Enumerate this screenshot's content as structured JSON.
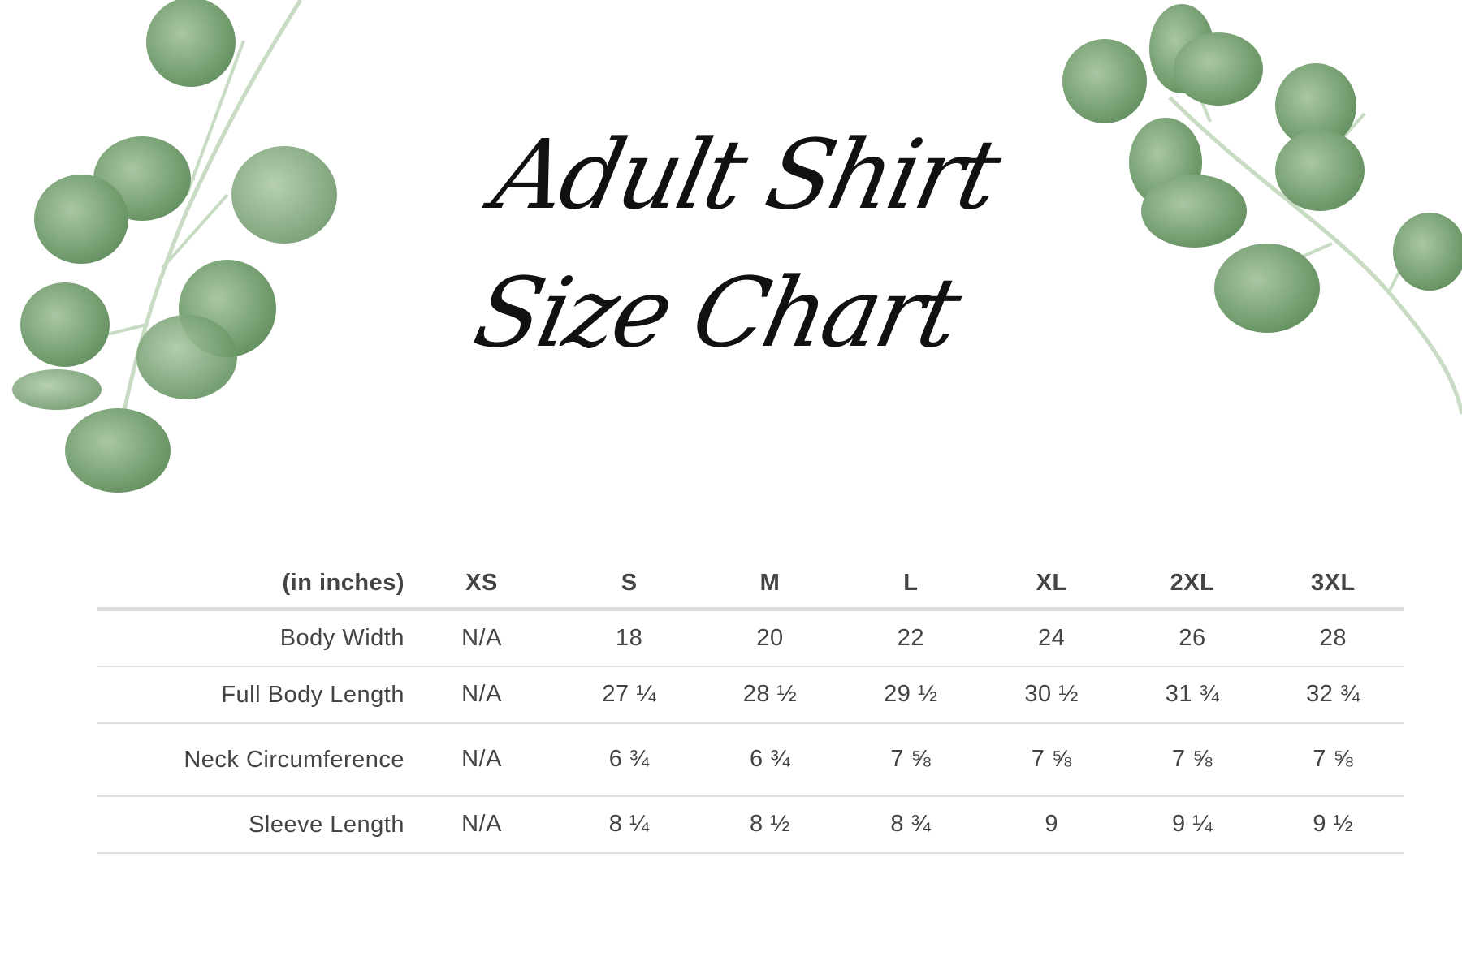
{
  "title": {
    "line1": "Adult Shirt",
    "line2": "Size Chart"
  },
  "colors": {
    "leaf": "#6f9a6a",
    "leaf_light": "#a9c7a3",
    "text": "#444444",
    "rule": "#dcdcdc"
  },
  "table": {
    "headers": [
      "(in inches)",
      "XS",
      "S",
      "M",
      "L",
      "XL",
      "2XL",
      "3XL"
    ],
    "rows": [
      {
        "label": "Body Width",
        "values": [
          "N/A",
          "18",
          "20",
          "22",
          "24",
          "26",
          "28"
        ]
      },
      {
        "label": "Full Body Length",
        "values": [
          "N/A",
          "27 ¼",
          "28 ½",
          "29 ½",
          "30 ½",
          "31 ¾",
          "32 ¾"
        ]
      },
      {
        "label": "Neck Circumference",
        "values": [
          "N/A",
          "6 ¾",
          "6 ¾",
          "7 ⅝",
          "7 ⅝",
          "7 ⅝",
          "7 ⅝"
        ]
      },
      {
        "label": "Sleeve Length",
        "values": [
          "N/A",
          "8 ¼",
          "8 ½",
          "8 ¾",
          "9",
          "9 ¼",
          "9 ½"
        ]
      }
    ]
  }
}
